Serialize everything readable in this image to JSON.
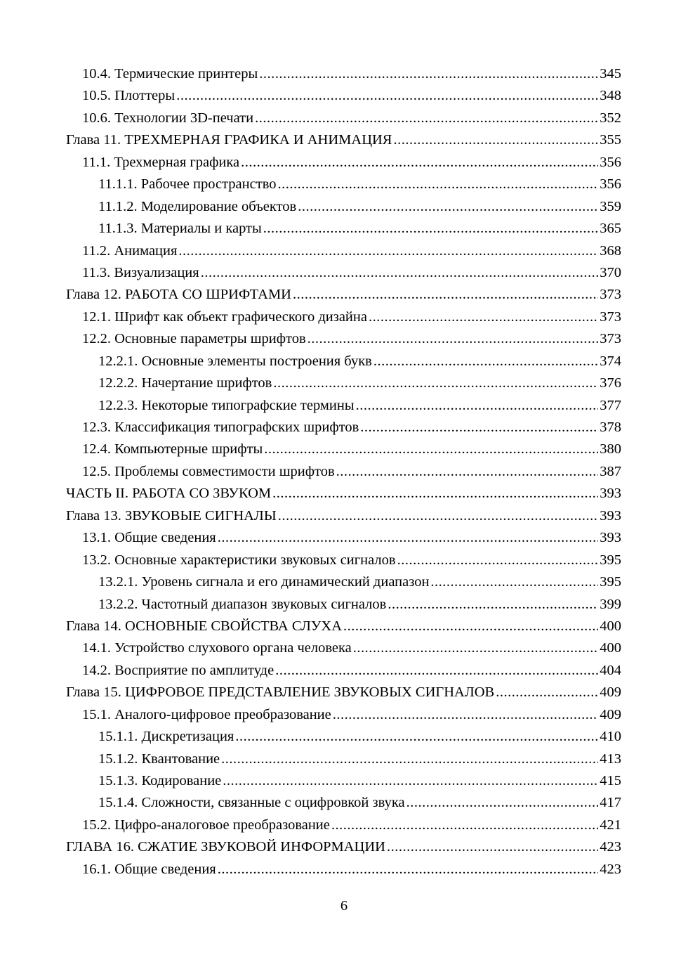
{
  "entries": [
    {
      "level": 1,
      "title": "10.4. Термические принтеры",
      "page": "345"
    },
    {
      "level": 1,
      "title": "10.5. Плоттеры",
      "page": "348"
    },
    {
      "level": 1,
      "title": "10.6. Технологии 3D-печати",
      "page": "352"
    },
    {
      "level": 0,
      "title": "Глава 11. ТРЕХМЕРНАЯ ГРАФИКА И АНИМАЦИЯ",
      "page": "355"
    },
    {
      "level": 1,
      "title": "11.1. Трехмерная графика",
      "page": "356"
    },
    {
      "level": 2,
      "title": "11.1.1. Рабочее пространство",
      "page": "356"
    },
    {
      "level": 2,
      "title": "11.1.2. Моделирование объектов",
      "page": "359"
    },
    {
      "level": 2,
      "title": "11.1.3. Материалы и карты",
      "page": "365"
    },
    {
      "level": 1,
      "title": "11.2. Анимация",
      "page": "368"
    },
    {
      "level": 1,
      "title": "11.3. Визуализация",
      "page": "370"
    },
    {
      "level": 0,
      "title": "Глава 12. РАБОТА СО ШРИФТАМИ",
      "page": "373"
    },
    {
      "level": 1,
      "title": "12.1. Шрифт как объект графического дизайна",
      "page": "373"
    },
    {
      "level": 1,
      "title": "12.2. Основные параметры шрифтов",
      "page": "373"
    },
    {
      "level": 2,
      "title": "12.2.1. Основные элементы построения букв",
      "page": "374"
    },
    {
      "level": 2,
      "title": "12.2.2. Начертание шрифтов",
      "page": "376"
    },
    {
      "level": 2,
      "title": "12.2.3. Некоторые типографские термины",
      "page": "377"
    },
    {
      "level": 1,
      "title": "12.3. Классификация типографских шрифтов",
      "page": "378"
    },
    {
      "level": 1,
      "title": "12.4. Компьютерные шрифты",
      "page": "380"
    },
    {
      "level": 1,
      "title": "12.5. Проблемы совместимости шрифтов",
      "page": "387"
    },
    {
      "level": 0,
      "title": "ЧАСТЬ II. РАБОТА СО ЗВУКОМ",
      "page": "393"
    },
    {
      "level": 0,
      "title": "Глава 13. ЗВУКОВЫЕ СИГНАЛЫ",
      "page": "393"
    },
    {
      "level": 1,
      "title": "13.1. Общие сведения",
      "page": "393"
    },
    {
      "level": 1,
      "title": "13.2. Основные характеристики звуковых сигналов",
      "page": "395"
    },
    {
      "level": 2,
      "title": "13.2.1. Уровень сигнала и его динамический диапазон",
      "page": "395"
    },
    {
      "level": 2,
      "title": "13.2.2. Частотный диапазон звуковых сигналов",
      "page": "399"
    },
    {
      "level": 0,
      "title": "Глава 14. ОСНОВНЫЕ СВОЙСТВА СЛУХА",
      "page": "400"
    },
    {
      "level": 1,
      "title": "14.1. Устройство слухового органа человека",
      "page": "400"
    },
    {
      "level": 1,
      "title": "14.2. Восприятие по амплитуде",
      "page": "404"
    },
    {
      "level": 0,
      "title": "Глава 15. ЦИФРОВОЕ ПРЕДСТАВЛЕНИЕ ЗВУКОВЫХ СИГНАЛОВ",
      "page": "409"
    },
    {
      "level": 1,
      "title": "15.1. Аналого-цифровое преобразование",
      "page": "409"
    },
    {
      "level": 2,
      "title": "15.1.1. Дискретизация",
      "page": "410"
    },
    {
      "level": 2,
      "title": "15.1.2. Квантование",
      "page": "413"
    },
    {
      "level": 2,
      "title": "15.1.3. Кодирование",
      "page": "415"
    },
    {
      "level": 2,
      "title": "15.1.4. Сложности, связанные с оцифровкой звука",
      "page": "417"
    },
    {
      "level": 1,
      "title": "15.2. Цифро-аналоговое преобразование",
      "page": "421"
    },
    {
      "level": 0,
      "title": "ГЛАВА 16. СЖАТИЕ ЗВУКОВОЙ ИНФОРМАЦИИ",
      "page": "423"
    },
    {
      "level": 1,
      "title": "16.1. Общие сведения",
      "page": "423"
    }
  ],
  "page_number": "6"
}
